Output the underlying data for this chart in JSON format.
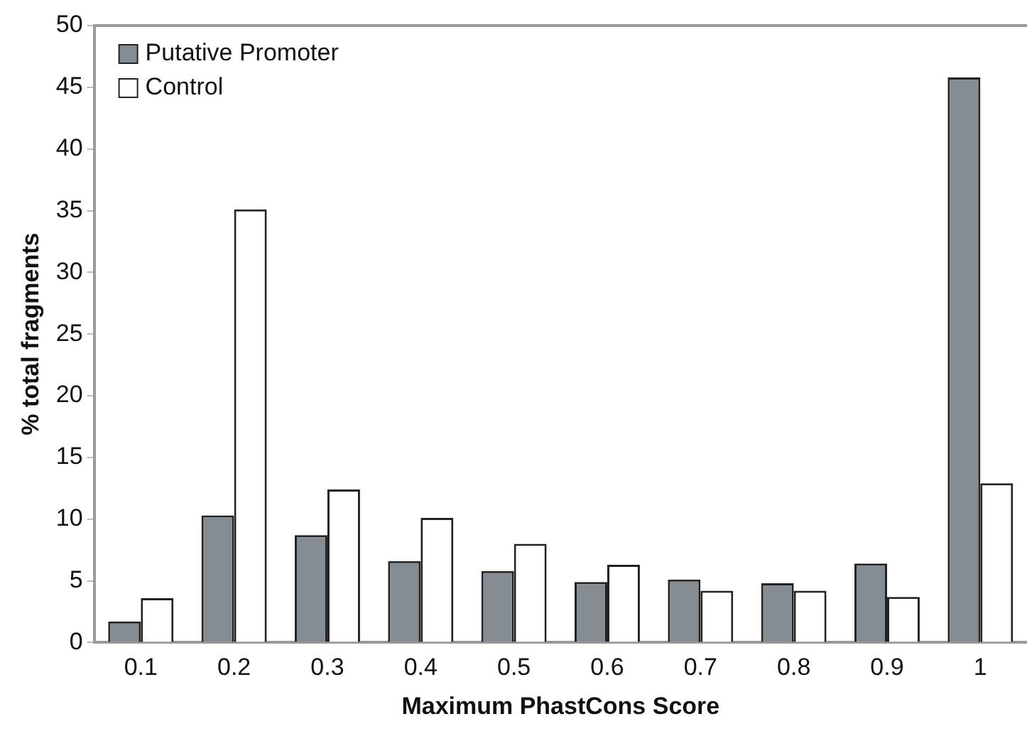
{
  "chart_data": {
    "type": "bar",
    "xlabel": "Maximum PhastCons Score",
    "ylabel": "% total fragments",
    "categories": [
      "0.1",
      "0.2",
      "0.3",
      "0.4",
      "0.5",
      "0.6",
      "0.7",
      "0.8",
      "0.9",
      "1"
    ],
    "series": [
      {
        "name": "Putative Promoter",
        "color": "#868d92",
        "values": [
          1.7,
          10.3,
          8.7,
          6.6,
          5.8,
          4.9,
          5.1,
          4.8,
          6.4,
          45.8
        ]
      },
      {
        "name": "Control",
        "color": "#ffffff",
        "values": [
          3.6,
          35.1,
          12.4,
          10.1,
          8.0,
          6.3,
          4.2,
          4.2,
          3.7,
          12.9
        ]
      }
    ],
    "ylim": [
      0,
      50
    ],
    "yticks": [
      0,
      5,
      10,
      15,
      20,
      25,
      30,
      35,
      40,
      45,
      50
    ],
    "grid": false,
    "legend": "top left"
  }
}
